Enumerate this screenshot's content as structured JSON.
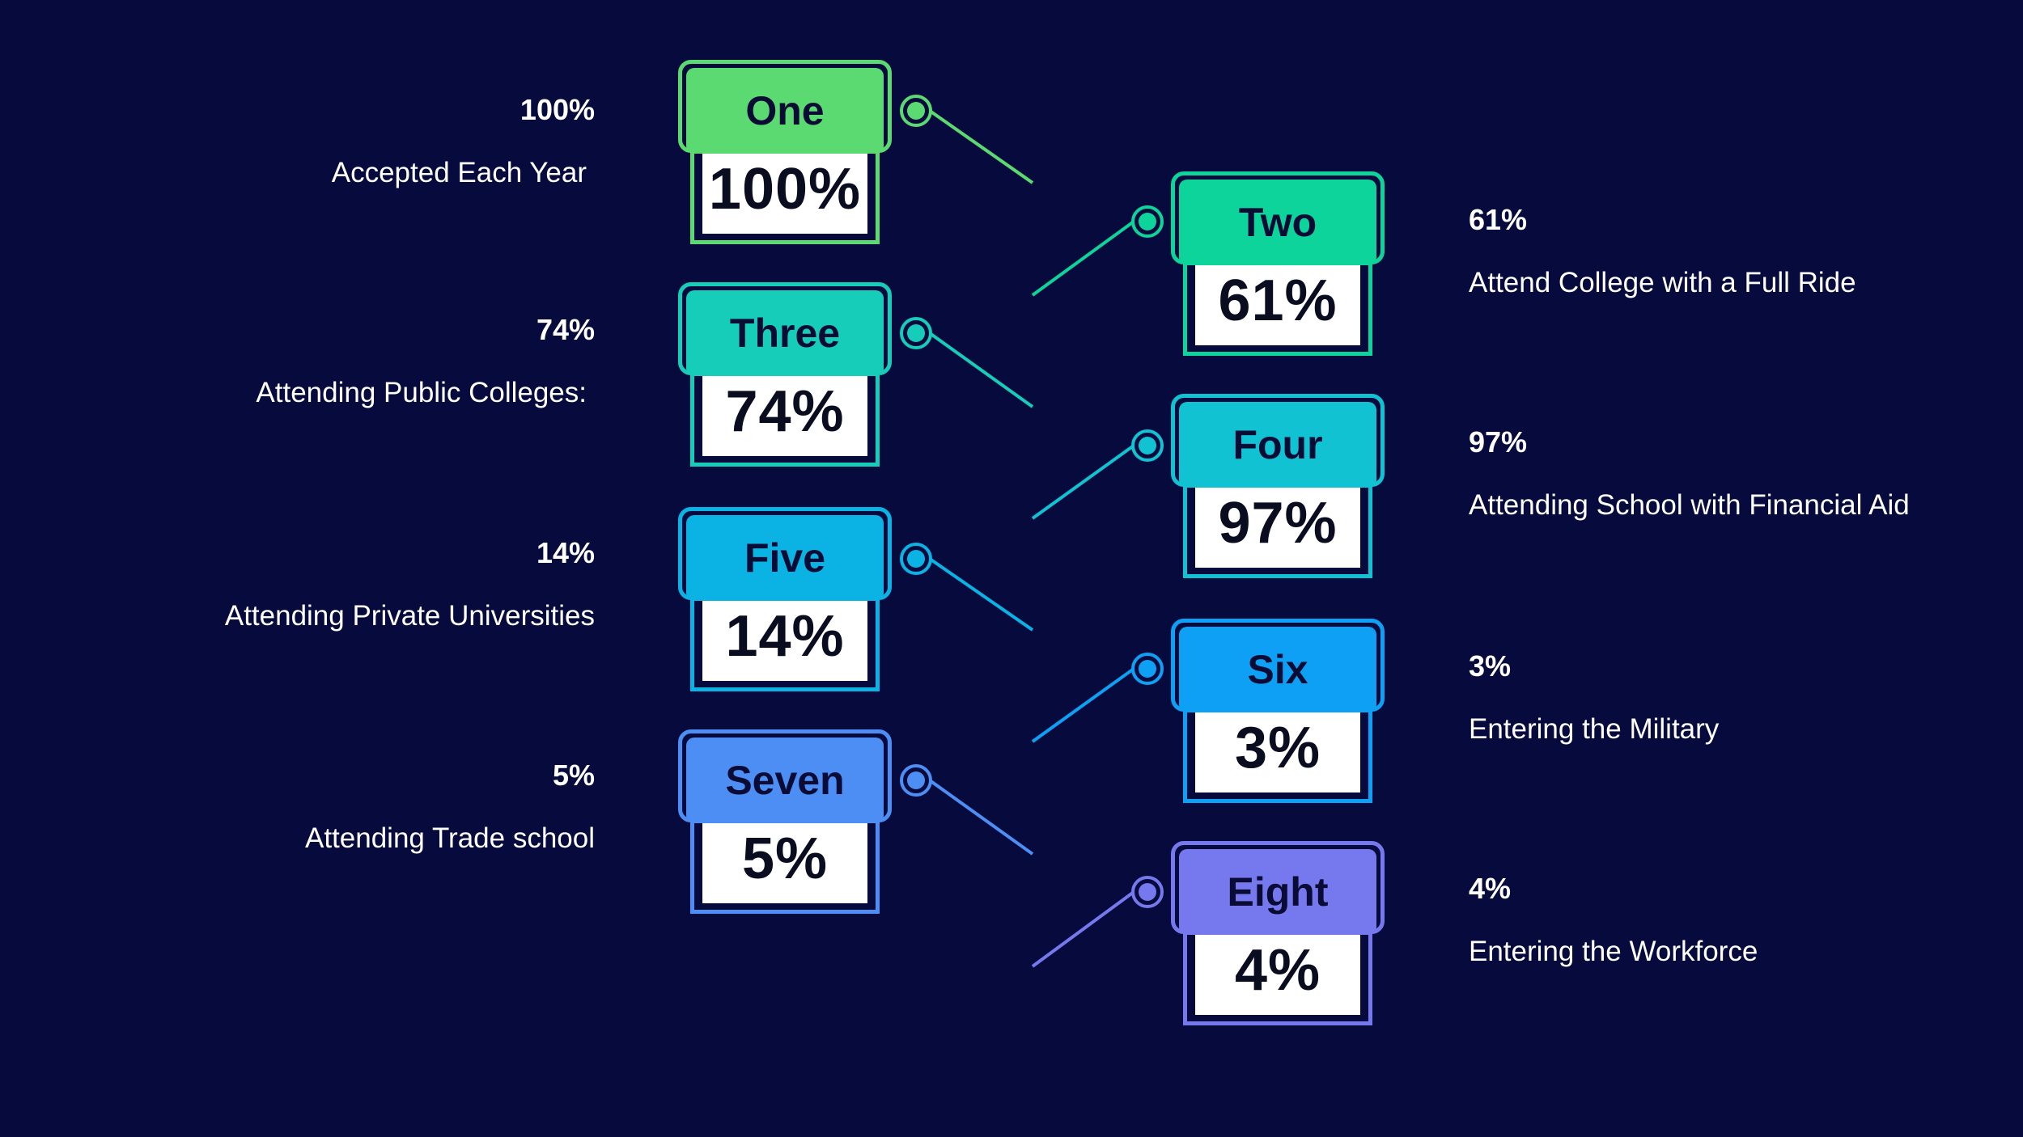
{
  "items": [
    {
      "label": "One",
      "value": "100%",
      "side_value": "100%",
      "description": "Accepted Each Year",
      "color": "#5ada70"
    },
    {
      "label": "Two",
      "value": "61%",
      "side_value": "61%",
      "description": "Attend College with a Full Ride",
      "color": "#0dd49a"
    },
    {
      "label": "Three",
      "value": "74%",
      "side_value": "74%",
      "description": "Attending Public Colleges:",
      "color": "#16cdb9"
    },
    {
      "label": "Four",
      "value": "97%",
      "side_value": "97%",
      "description": "Attending School with Financial Aid",
      "color": "#10c2d2"
    },
    {
      "label": "Five",
      "value": "14%",
      "side_value": "14%",
      "description": "Attending Private Universities",
      "color": "#0ab3e3"
    },
    {
      "label": "Six",
      "value": "3%",
      "side_value": "3%",
      "description": "Entering the Military",
      "color": "#0ea0f4"
    },
    {
      "label": "Seven",
      "value": "5%",
      "side_value": "5%",
      "description": "Attending Trade school",
      "color": "#4d8ef4"
    },
    {
      "label": "Eight",
      "value": "4%",
      "side_value": "4%",
      "description": "Entering the Workforce",
      "color": "#7679ee"
    }
  ],
  "colors": {
    "background": "#070a3c",
    "value_box_fill": "#ffffff",
    "trunk_top": "#5ada70",
    "trunk_bottom": "#7679ee"
  }
}
